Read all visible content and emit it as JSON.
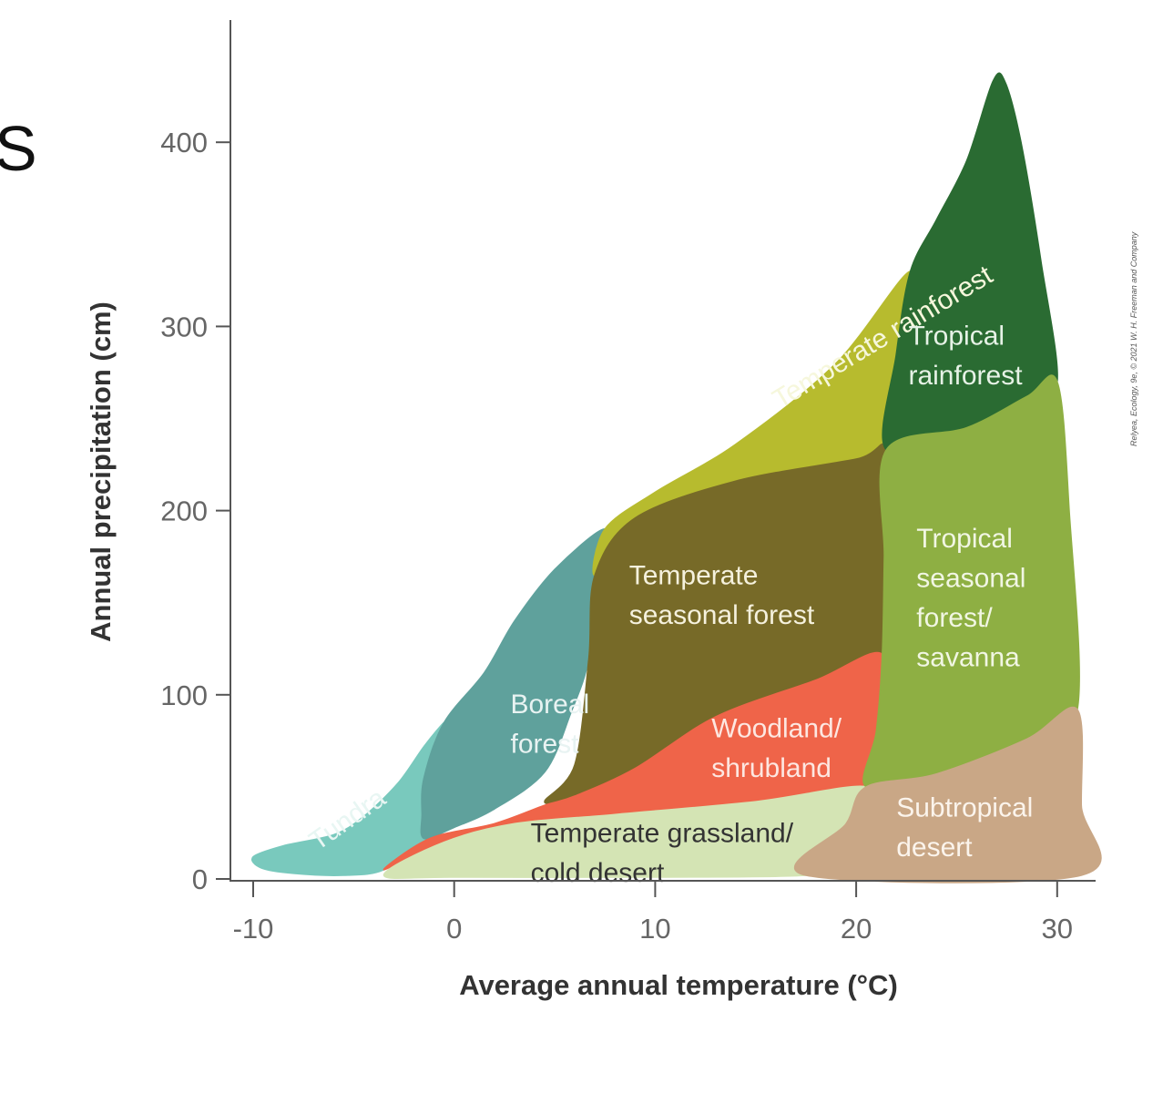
{
  "page_fragment": "S",
  "credit": "Relyea, Ecology, 9e, © 2021 W. H. Freeman and Company",
  "chart_data": {
    "type": "area",
    "title": "",
    "xlabel": "Average annual temperature (°C)",
    "ylabel": "Annual precipitation (cm)",
    "xlim": [
      -10,
      30
    ],
    "ylim": [
      0,
      400
    ],
    "x_ticks": [
      "-10",
      "0",
      "10",
      "20",
      "30"
    ],
    "y_ticks": [
      "0",
      "100",
      "200",
      "300",
      "400"
    ],
    "grid": false,
    "legend": "none (labels drawn inside regions)",
    "regions": [
      {
        "name": "Tundra",
        "label_lines": [
          "Tundra"
        ],
        "color": "#79c9bd",
        "label_color": "#e8f6f3",
        "label_at": [
          -6.8,
          15
        ],
        "label_rotate": -35,
        "outline": [
          [
            -9.6,
            6
          ],
          [
            -10.0,
            12
          ],
          [
            -8.5,
            18
          ],
          [
            -6.0,
            24
          ],
          [
            -4.5,
            34
          ],
          [
            -2.8,
            52
          ],
          [
            -1.5,
            72
          ],
          [
            -0.5,
            85
          ],
          [
            -1.0,
            75
          ],
          [
            -1.5,
            55
          ],
          [
            -1.6,
            35
          ],
          [
            -1.2,
            22
          ],
          [
            -3.5,
            5
          ],
          [
            -5.5,
            2
          ],
          [
            -8.0,
            3
          ]
        ]
      },
      {
        "name": "Boreal forest",
        "label_lines": [
          "Boreal",
          "forest"
        ],
        "color": "#5fa19c",
        "label_color": "#e8f3f2",
        "label_at": [
          2.8,
          90
        ],
        "label_rotate": 0,
        "outline": [
          [
            -1.5,
            22
          ],
          [
            -1.6,
            35
          ],
          [
            -1.5,
            55
          ],
          [
            -0.5,
            85
          ],
          [
            1.5,
            112
          ],
          [
            3.0,
            140
          ],
          [
            5.0,
            168
          ],
          [
            7.5,
            190
          ],
          [
            7.0,
            165
          ],
          [
            6.7,
            120
          ],
          [
            5.8,
            90
          ],
          [
            4.5,
            58
          ],
          [
            2.0,
            38
          ],
          [
            0.0,
            28
          ]
        ]
      },
      {
        "name": "Temperate rainforest",
        "label_lines": [
          "Temperate rainforest"
        ],
        "color": "#b7bb2e",
        "label_color": "#f6f7dc",
        "label_at": [
          16.2,
          255
        ],
        "label_rotate": -31,
        "outline": [
          [
            7.5,
            190
          ],
          [
            10.0,
            210
          ],
          [
            14.0,
            236
          ],
          [
            19.0,
            280
          ],
          [
            22.7,
            330
          ],
          [
            22.0,
            285
          ],
          [
            21.5,
            233
          ],
          [
            20.0,
            228
          ],
          [
            14.0,
            216
          ],
          [
            9.0,
            196
          ],
          [
            7.0,
            165
          ]
        ]
      },
      {
        "name": "Temperate seasonal forest",
        "label_lines": [
          "Temperate",
          "seasonal forest"
        ],
        "color": "#776a28",
        "label_color": "#f5f1dd",
        "label_at": [
          8.7,
          160
        ],
        "label_rotate": 0,
        "outline": [
          [
            7.0,
            165
          ],
          [
            9.0,
            196
          ],
          [
            14.0,
            216
          ],
          [
            20.0,
            228
          ],
          [
            21.5,
            233
          ],
          [
            21.4,
            175
          ],
          [
            21.3,
            122
          ],
          [
            18.0,
            108
          ],
          [
            13.0,
            88
          ],
          [
            9.0,
            60
          ],
          [
            6.0,
            45
          ],
          [
            4.5,
            42
          ],
          [
            6.0,
            62
          ],
          [
            6.7,
            120
          ]
        ]
      },
      {
        "name": "Woodland/shrubland",
        "label_lines": [
          "Woodland/",
          "shrubland"
        ],
        "color": "#ef6449",
        "label_color": "#fde7e1",
        "label_at": [
          12.8,
          77
        ],
        "label_rotate": 0,
        "outline": [
          [
            -3.5,
            5
          ],
          [
            -1.2,
            22
          ],
          [
            2.0,
            30
          ],
          [
            4.5,
            40
          ],
          [
            6.0,
            45
          ],
          [
            9.0,
            60
          ],
          [
            13.0,
            88
          ],
          [
            18.0,
            108
          ],
          [
            21.3,
            122
          ],
          [
            21.0,
            80
          ],
          [
            20.5,
            50
          ],
          [
            15.0,
            42
          ],
          [
            8.0,
            35
          ],
          [
            3.0,
            30
          ],
          [
            -0.5,
            20
          ]
        ]
      },
      {
        "name": "Temperate grassland/cold desert",
        "label_lines": [
          "Temperate grassland/",
          "cold desert"
        ],
        "color": "#d4e4b4",
        "label_color": "#333333",
        "label_at": [
          3.8,
          20
        ],
        "label_rotate": 0,
        "outline": [
          [
            -3.5,
            2
          ],
          [
            -0.5,
            20
          ],
          [
            3.0,
            30
          ],
          [
            8.0,
            35
          ],
          [
            15.0,
            42
          ],
          [
            20.5,
            50
          ],
          [
            19.5,
            30
          ],
          [
            18.0,
            8
          ],
          [
            17.5,
            2
          ],
          [
            10.0,
            1
          ],
          [
            0.0,
            1
          ]
        ]
      },
      {
        "name": "Tropical rainforest",
        "label_lines": [
          "Tropical",
          "rainforest"
        ],
        "color": "#2a6b32",
        "label_color": "#e6f2e6",
        "label_at": [
          22.6,
          290
        ],
        "label_rotate": 0,
        "outline": [
          [
            22.7,
            330
          ],
          [
            24.0,
            358
          ],
          [
            25.5,
            390
          ],
          [
            26.8,
            433
          ],
          [
            27.4,
            433
          ],
          [
            28.2,
            400
          ],
          [
            29.2,
            335
          ],
          [
            30.0,
            270
          ],
          [
            28.5,
            262
          ],
          [
            25.5,
            245
          ],
          [
            21.5,
            233
          ],
          [
            22.0,
            285
          ]
        ]
      },
      {
        "name": "Tropical seasonal forest/savanna",
        "label_lines": [
          "Tropical",
          "seasonal",
          "forest/",
          "savanna"
        ],
        "color": "#8eaf43",
        "label_color": "#f1f6e3",
        "label_at": [
          23.0,
          180
        ],
        "label_rotate": 0,
        "outline": [
          [
            21.5,
            233
          ],
          [
            25.5,
            245
          ],
          [
            28.5,
            262
          ],
          [
            30.0,
            270
          ],
          [
            30.6,
            200
          ],
          [
            31.0,
            92
          ],
          [
            28.5,
            76
          ],
          [
            24.0,
            57
          ],
          [
            20.5,
            50
          ],
          [
            21.0,
            80
          ],
          [
            21.3,
            122
          ],
          [
            21.4,
            175
          ]
        ]
      },
      {
        "name": "Subtropical desert",
        "label_lines": [
          "Subtropical",
          "desert"
        ],
        "color": "#c9a786",
        "label_color": "#fbf4ec",
        "label_at": [
          22.0,
          34
        ],
        "label_rotate": 0,
        "outline": [
          [
            17.5,
            2
          ],
          [
            19.5,
            30
          ],
          [
            20.5,
            50
          ],
          [
            24.0,
            57
          ],
          [
            28.5,
            76
          ],
          [
            31.0,
            92
          ],
          [
            31.2,
            40
          ],
          [
            31.2,
            2
          ]
        ]
      }
    ]
  }
}
